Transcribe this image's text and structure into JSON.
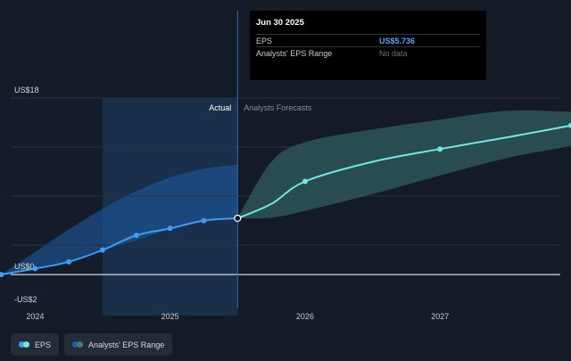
{
  "tooltip": {
    "date": "Jun 30 2025",
    "rows": [
      {
        "label": "EPS",
        "value": "US$5.736"
      },
      {
        "label": "Analysts' EPS Range",
        "value": "No data"
      }
    ]
  },
  "legend": {
    "eps_label": "EPS",
    "range_label": "Analysts' EPS Range"
  },
  "colors": {
    "background": "#151b26",
    "eps_line": "#3d9cf5",
    "forecast_line": "#6ee9e2",
    "range_fill": "#2f5e5d",
    "actual_shade": "#1e5fa8",
    "tooltip_value": "#5aa7ff"
  },
  "chart_data": {
    "type": "line",
    "y_axis_labels": [
      "US$18",
      "US$0",
      "-US$2"
    ],
    "x_tick_labels": [
      "2024",
      "2025",
      "2026",
      "2027"
    ],
    "x_ticks": [
      2024.0,
      2025.0,
      2026.0,
      2027.0
    ],
    "region_labels": {
      "actual": "Actual",
      "forecast": "Analysts Forecasts"
    },
    "divider_x": 2025.5,
    "highlight_start_x": 2024.5,
    "ylim": [
      -2,
      18
    ],
    "xlim": [
      2023.74,
      2027.97
    ],
    "gridlines": [
      18,
      13,
      8,
      3,
      0
    ],
    "series": [
      {
        "name": "EPS",
        "kind": "actual",
        "x": [
          2023.75,
          2024.0,
          2024.25,
          2024.5,
          2024.75,
          2025.0,
          2025.25,
          2025.5
        ],
        "y": [
          0.0,
          0.6,
          1.3,
          2.5,
          4.0,
          4.7,
          5.5,
          5.736
        ]
      },
      {
        "name": "Analysts' EPS Range",
        "kind": "past_band",
        "x": [
          2023.75,
          2024.0,
          2024.25,
          2024.5,
          2024.75,
          2025.0,
          2025.25,
          2025.5
        ],
        "upper": [
          0.0,
          2.3,
          4.6,
          6.7,
          8.5,
          9.9,
          10.8,
          11.2
        ],
        "lower": [
          0.0,
          0.6,
          1.3,
          2.5,
          3.5,
          4.6,
          5.4,
          5.736
        ]
      },
      {
        "name": "Forecast",
        "kind": "forecast",
        "x": [
          2025.5,
          2025.75,
          2026.0,
          2026.5,
          2027.0,
          2027.5,
          2027.97
        ],
        "y": [
          5.736,
          7.2,
          9.5,
          11.5,
          12.8,
          14.0,
          15.2
        ],
        "upper": [
          5.736,
          11.5,
          13.5,
          14.8,
          15.8,
          16.7,
          16.6
        ],
        "lower": [
          5.736,
          5.8,
          6.5,
          8.2,
          10.1,
          11.9,
          13.1
        ],
        "markers_x": [
          2026.0,
          2027.0,
          2027.97
        ]
      }
    ]
  }
}
